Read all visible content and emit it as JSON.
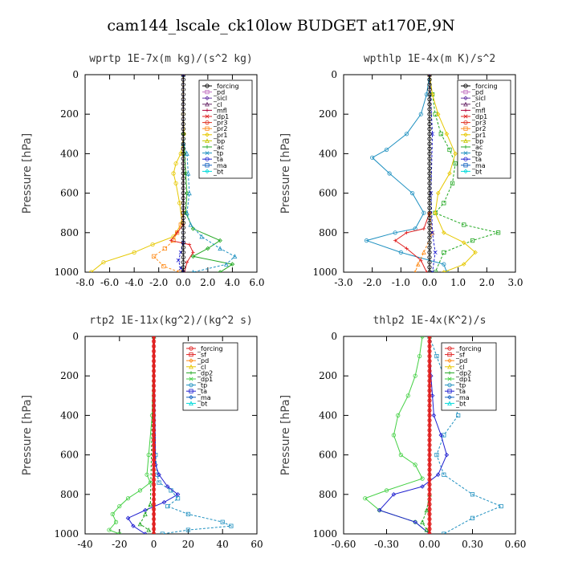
{
  "suptitle": "cam144_lscale_ck10low  BUDGET at170E,9N",
  "colors": {
    "forcing": "#000000",
    "pd": "#c070c0",
    "sicl": "#6a3aa8",
    "cl": "#6a2a6a",
    "mfl": "#b0003a",
    "dp1": "#e02020",
    "pr3": "#e03020",
    "pr2": "#ff8c1a",
    "pr1": "#e6c800",
    "bp": "#c8c800",
    "ac": "#22a822",
    "tp": "#1e90c0",
    "ta": "#2020d0",
    "ma": "#1060c0",
    "bt": "#00dada",
    "sf": "#e02020",
    "dp2": "#22a822",
    "dp1_green": "#44d044"
  },
  "chart_data": [
    {
      "type": "line",
      "title": "wprtp  1E-7x(m kg)/(s^2 kg)",
      "ylabel": "Pressure [hPa]",
      "xlim": [
        -8,
        6
      ],
      "ylim": [
        1000,
        0
      ],
      "xticks": [
        "-8.0",
        "-6.0",
        "-4.0",
        "-2.0",
        "0.0",
        "2.0",
        "4.0",
        "6.0"
      ],
      "xtick_values": [
        -8,
        -6,
        -4,
        -2,
        0,
        2,
        4,
        6
      ],
      "yticks": [
        "0",
        "200",
        "400",
        "600",
        "800",
        "1000"
      ],
      "ytick_values": [
        0,
        200,
        400,
        600,
        800,
        1000
      ],
      "legend": [
        "_forcing",
        "_pd",
        "_sicl",
        "_cl",
        "_mfl",
        "_dp1",
        "_pr3",
        "_pr2",
        "_pr1",
        "_bp",
        "_ac",
        "_tp",
        "_ta",
        "_ma",
        "_bt"
      ],
      "legend_colors": [
        "forcing",
        "pd",
        "sicl",
        "cl",
        "mfl",
        "dp1",
        "pr3",
        "pr2",
        "pr1",
        "bp",
        "ac",
        "tp",
        "ta",
        "ma",
        "bt"
      ],
      "series": [
        {
          "color": "pr1",
          "x": [
            0,
            0,
            0.05,
            -0.2,
            -0.6,
            -0.8,
            -0.6,
            -0.3,
            -0.1,
            -0.8,
            -2.5,
            -4.0,
            -6.5,
            -7.5
          ],
          "y": [
            0,
            200,
            300,
            400,
            450,
            500,
            550,
            650,
            750,
            820,
            860,
            900,
            950,
            1000
          ]
        },
        {
          "color": "pr2",
          "x": [
            0,
            0,
            -0.2,
            -0.5,
            -0.8,
            -1.5,
            -2.4,
            -1.6,
            -0.3
          ],
          "y": [
            0,
            700,
            760,
            800,
            840,
            880,
            920,
            970,
            1000
          ]
        },
        {
          "color": "ac",
          "x": [
            0,
            0,
            0.1,
            0.2,
            0.3,
            0.2,
            0.8,
            3.0,
            2.0,
            0.8,
            4.0,
            3.0
          ],
          "y": [
            0,
            300,
            400,
            500,
            600,
            700,
            780,
            840,
            880,
            920,
            960,
            1000
          ]
        },
        {
          "color": "tp",
          "x": [
            0,
            0,
            0.3,
            0.4,
            0.5,
            0.3,
            0.6,
            1.5,
            3.0,
            4.2,
            3.5,
            0.8
          ],
          "y": [
            0,
            350,
            400,
            500,
            600,
            700,
            760,
            820,
            880,
            920,
            960,
            1000
          ]
        },
        {
          "color": "dp1",
          "x": [
            0,
            0,
            -0.5,
            -1.0,
            0.5,
            0.8,
            0.3,
            0.1
          ],
          "y": [
            0,
            760,
            800,
            840,
            860,
            900,
            950,
            1000
          ]
        },
        {
          "color": "ta",
          "x": [
            0,
            0,
            -0.2,
            -0.4,
            -0.2,
            0
          ],
          "y": [
            0,
            850,
            900,
            940,
            980,
            1000
          ]
        },
        {
          "color": "forcing",
          "x": [
            0,
            0
          ],
          "y": [
            0,
            1000
          ]
        }
      ]
    },
    {
      "type": "line",
      "title": "wpthlp  1E-4x(m K)/s^2",
      "ylabel": "Pressure [hPa]",
      "xlim": [
        -3,
        3
      ],
      "ylim": [
        1000,
        0
      ],
      "xticks": [
        "-3.0",
        "-2.0",
        "-1.0",
        "0.0",
        "1.0",
        "2.0",
        "3.0"
      ],
      "xtick_values": [
        -3,
        -2,
        -1,
        0,
        1,
        2,
        3
      ],
      "yticks": [
        "0",
        "200",
        "400",
        "600",
        "800",
        "1000"
      ],
      "ytick_values": [
        0,
        200,
        400,
        600,
        800,
        1000
      ],
      "legend": [
        "_forcing",
        "_pd",
        "_sicl",
        "_cl",
        "_mfl",
        "_dp1",
        "_pr3",
        "_pr2",
        "_pr1",
        "_bp",
        "_ac",
        "_tp",
        "_ta",
        "_ma",
        "_bt"
      ],
      "legend_colors": [
        "forcing",
        "pd",
        "sicl",
        "cl",
        "mfl",
        "dp1",
        "pr3",
        "pr2",
        "pr1",
        "bp",
        "ac",
        "tp",
        "ta",
        "ma",
        "bt"
      ],
      "series": [
        {
          "color": "tp",
          "x": [
            0,
            -0.1,
            -0.3,
            -0.8,
            -1.5,
            -2.0,
            -1.4,
            -0.6,
            -0.2,
            -0.5,
            -1.2,
            -2.2,
            -1.0,
            0.5,
            0.6
          ],
          "y": [
            0,
            100,
            200,
            300,
            380,
            420,
            500,
            600,
            700,
            780,
            800,
            840,
            900,
            960,
            1000
          ]
        },
        {
          "color": "ac",
          "x": [
            0,
            0.1,
            0.2,
            0.4,
            0.7,
            0.9,
            0.8,
            0.5,
            0.2,
            1.2,
            2.4,
            1.5,
            0.5,
            0.2
          ],
          "y": [
            0,
            100,
            200,
            300,
            380,
            450,
            550,
            650,
            700,
            760,
            800,
            840,
            900,
            1000
          ]
        },
        {
          "color": "pr1",
          "x": [
            0,
            0.1,
            0.3,
            0.6,
            0.9,
            0.7,
            0.3,
            0.2,
            0.5,
            1.2,
            1.6,
            1.2,
            0.5
          ],
          "y": [
            0,
            100,
            200,
            300,
            400,
            500,
            600,
            700,
            800,
            850,
            900,
            960,
            1000
          ]
        },
        {
          "color": "pr2",
          "x": [
            0,
            0,
            0.1,
            -0.2,
            -0.4,
            -0.5
          ],
          "y": [
            0,
            700,
            800,
            900,
            960,
            1000
          ]
        },
        {
          "color": "dp1",
          "x": [
            0,
            0,
            -0.2,
            -0.8,
            -1.2,
            -0.8,
            -0.3,
            -0.1
          ],
          "y": [
            0,
            700,
            780,
            800,
            840,
            880,
            940,
            1000
          ]
        },
        {
          "color": "ta",
          "x": [
            0,
            0.1,
            0.05,
            0.1,
            0.2,
            0.1
          ],
          "y": [
            0,
            300,
            600,
            800,
            900,
            1000
          ]
        },
        {
          "color": "forcing",
          "x": [
            0,
            0
          ],
          "y": [
            0,
            1000
          ]
        }
      ]
    },
    {
      "type": "line",
      "title": "rtp2  1E-11x(kg^2)/(kg^2 s)",
      "ylabel": "Pressure [hPa]",
      "xlim": [
        -40,
        60
      ],
      "ylim": [
        1000,
        0
      ],
      "xticks": [
        "-40",
        "-20",
        "0",
        "20",
        "40",
        "60"
      ],
      "xtick_values": [
        -40,
        -20,
        0,
        20,
        40,
        60
      ],
      "yticks": [
        "0",
        "200",
        "400",
        "600",
        "800",
        "1000"
      ],
      "ytick_values": [
        0,
        200,
        400,
        600,
        800,
        1000
      ],
      "legend": [
        "_forcing",
        "_sf",
        "_pd",
        "_cl",
        "_dp2",
        "_dp1",
        "_tp",
        "_ta",
        "_ma",
        "_bt"
      ],
      "legend_colors": [
        "forcing_red",
        "sf",
        "pr2",
        "pr1",
        "dp2",
        "dp1_green",
        "tp",
        "ta",
        "ma",
        "bt"
      ],
      "series": [
        {
          "color": "dp1_green",
          "x": [
            0,
            -1,
            -3,
            -4,
            -2,
            -8,
            -15,
            -20,
            -24,
            -22,
            -26,
            -20
          ],
          "y": [
            0,
            400,
            600,
            700,
            740,
            780,
            820,
            860,
            900,
            940,
            980,
            1000
          ]
        },
        {
          "color": "tp",
          "x": [
            0,
            1,
            2,
            3,
            10,
            14,
            8,
            20,
            40,
            45,
            20,
            5
          ],
          "y": [
            0,
            600,
            700,
            740,
            780,
            820,
            860,
            900,
            940,
            960,
            980,
            1000
          ]
        },
        {
          "color": "ta",
          "x": [
            0,
            1,
            3,
            8,
            14,
            6,
            -5,
            -15,
            -12,
            -5
          ],
          "y": [
            0,
            650,
            700,
            760,
            800,
            840,
            880,
            920,
            960,
            1000
          ]
        },
        {
          "color": "dp2",
          "x": [
            0,
            -2,
            -5,
            -8,
            -3,
            0
          ],
          "y": [
            0,
            850,
            900,
            950,
            980,
            1000
          ]
        },
        {
          "color": "sf",
          "x": [
            0,
            0
          ],
          "y": [
            0,
            1000
          ],
          "thick": true
        }
      ]
    },
    {
      "type": "line",
      "title": "thlp2  1E-4x(K^2)/s",
      "ylabel": "Pressure [hPa]",
      "xlim": [
        -0.6,
        0.6
      ],
      "ylim": [
        1000,
        0
      ],
      "xticks": [
        "-0.60",
        "-0.30",
        "0.00",
        "0.30",
        "0.60"
      ],
      "xtick_values": [
        -0.6,
        -0.3,
        0,
        0.3,
        0.6
      ],
      "yticks": [
        "0",
        "200",
        "400",
        "600",
        "800",
        "1000"
      ],
      "ytick_values": [
        0,
        200,
        400,
        600,
        800,
        1000
      ],
      "legend": [
        "_forcing",
        "_sf",
        "_pd",
        "_cl",
        "_dp2",
        "_dp1",
        "_tp",
        "_ta",
        "_ma",
        "_bt"
      ],
      "legend_colors": [
        "forcing_red",
        "sf",
        "pr2",
        "pr1",
        "dp2",
        "dp1_green",
        "tp",
        "ta",
        "ma",
        "bt"
      ],
      "series": [
        {
          "color": "dp1_green",
          "x": [
            -0.05,
            -0.07,
            -0.1,
            -0.15,
            -0.22,
            -0.25,
            -0.2,
            -0.1,
            -0.05,
            -0.3,
            -0.45,
            -0.35,
            -0.1,
            0
          ],
          "y": [
            0,
            100,
            200,
            300,
            400,
            500,
            600,
            650,
            720,
            780,
            820,
            880,
            940,
            1000
          ]
        },
        {
          "color": "tp",
          "x": [
            0,
            0.05,
            0.1,
            0.15,
            0.2,
            0.1,
            0.05,
            0.1,
            0.3,
            0.5,
            0.3,
            0.1
          ],
          "y": [
            0,
            100,
            200,
            300,
            400,
            500,
            600,
            700,
            800,
            860,
            920,
            1000
          ]
        },
        {
          "color": "ta",
          "x": [
            0,
            0.01,
            0.02,
            0.03,
            0.08,
            0.12,
            0.06,
            -0.05,
            -0.25,
            -0.35,
            -0.1,
            0
          ],
          "y": [
            0,
            200,
            300,
            400,
            500,
            600,
            700,
            760,
            800,
            880,
            940,
            1000
          ]
        },
        {
          "color": "dp2",
          "x": [
            0,
            0,
            -0.02,
            -0.05,
            -0.02,
            0
          ],
          "y": [
            0,
            800,
            880,
            940,
            980,
            1000
          ]
        },
        {
          "color": "sf",
          "x": [
            0,
            0
          ],
          "y": [
            0,
            1000
          ],
          "thick": true
        }
      ]
    }
  ]
}
